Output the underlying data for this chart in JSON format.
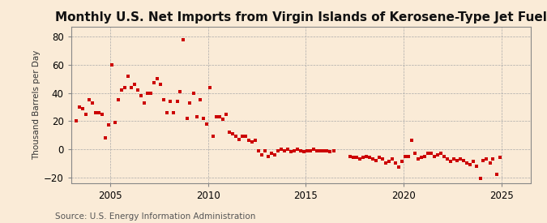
{
  "title": "Monthly U.S. Net Imports from Virgin Islands of Kerosene-Type Jet Fuel",
  "ylabel": "Thousand Barrels per Day",
  "source": "Source: U.S. Energy Information Administration",
  "background_color": "#faebd7",
  "dot_color": "#cc0000",
  "dot_size": 7,
  "xlim": [
    2003.0,
    2026.5
  ],
  "ylim": [
    -24,
    87
  ],
  "yticks": [
    -20,
    0,
    20,
    40,
    60,
    80
  ],
  "xticks": [
    2005,
    2010,
    2015,
    2020,
    2025
  ],
  "title_fontsize": 11,
  "tick_fontsize": 8.5,
  "ylabel_fontsize": 7.5,
  "source_fontsize": 7.5,
  "data_points": [
    [
      2003.25,
      20
    ],
    [
      2003.42,
      30
    ],
    [
      2003.58,
      29
    ],
    [
      2003.75,
      25
    ],
    [
      2003.92,
      35
    ],
    [
      2004.08,
      33
    ],
    [
      2004.25,
      26
    ],
    [
      2004.42,
      26
    ],
    [
      2004.58,
      25
    ],
    [
      2004.75,
      8
    ],
    [
      2004.92,
      17
    ],
    [
      2005.08,
      60
    ],
    [
      2005.25,
      19
    ],
    [
      2005.42,
      35
    ],
    [
      2005.58,
      42
    ],
    [
      2005.75,
      44
    ],
    [
      2005.92,
      52
    ],
    [
      2006.08,
      44
    ],
    [
      2006.25,
      46
    ],
    [
      2006.42,
      42
    ],
    [
      2006.58,
      38
    ],
    [
      2006.75,
      33
    ],
    [
      2006.92,
      40
    ],
    [
      2007.08,
      40
    ],
    [
      2007.25,
      47
    ],
    [
      2007.42,
      50
    ],
    [
      2007.58,
      46
    ],
    [
      2007.75,
      35
    ],
    [
      2007.92,
      26
    ],
    [
      2008.08,
      34
    ],
    [
      2008.25,
      26
    ],
    [
      2008.42,
      34
    ],
    [
      2008.58,
      41
    ],
    [
      2008.75,
      78
    ],
    [
      2008.92,
      22
    ],
    [
      2009.08,
      33
    ],
    [
      2009.25,
      40
    ],
    [
      2009.42,
      23
    ],
    [
      2009.58,
      35
    ],
    [
      2009.75,
      22
    ],
    [
      2009.92,
      18
    ],
    [
      2010.08,
      44
    ],
    [
      2010.25,
      9
    ],
    [
      2010.42,
      23
    ],
    [
      2010.58,
      23
    ],
    [
      2010.75,
      21
    ],
    [
      2010.92,
      25
    ],
    [
      2011.08,
      12
    ],
    [
      2011.25,
      11
    ],
    [
      2011.42,
      9
    ],
    [
      2011.58,
      7
    ],
    [
      2011.75,
      9
    ],
    [
      2011.92,
      9
    ],
    [
      2012.08,
      6
    ],
    [
      2012.25,
      5
    ],
    [
      2012.42,
      6
    ],
    [
      2012.58,
      -1
    ],
    [
      2012.75,
      -4
    ],
    [
      2012.92,
      -1
    ],
    [
      2013.08,
      -5
    ],
    [
      2013.25,
      -3
    ],
    [
      2013.42,
      -4
    ],
    [
      2013.58,
      -1
    ],
    [
      2013.75,
      0
    ],
    [
      2013.92,
      -1
    ],
    [
      2014.08,
      0
    ],
    [
      2014.25,
      -2
    ],
    [
      2014.42,
      -1
    ],
    [
      2014.58,
      0
    ],
    [
      2014.75,
      -1
    ],
    [
      2014.92,
      -2
    ],
    [
      2015.08,
      -1
    ],
    [
      2015.25,
      -1
    ],
    [
      2015.42,
      0
    ],
    [
      2015.58,
      -1
    ],
    [
      2015.75,
      -1
    ],
    [
      2015.92,
      -1
    ],
    [
      2016.08,
      -1
    ],
    [
      2016.25,
      -2
    ],
    [
      2016.42,
      -1
    ],
    [
      2017.25,
      -5
    ],
    [
      2017.42,
      -6
    ],
    [
      2017.58,
      -6
    ],
    [
      2017.75,
      -7
    ],
    [
      2017.92,
      -6
    ],
    [
      2018.08,
      -5
    ],
    [
      2018.25,
      -6
    ],
    [
      2018.42,
      -7
    ],
    [
      2018.58,
      -8
    ],
    [
      2018.75,
      -6
    ],
    [
      2018.92,
      -7
    ],
    [
      2019.08,
      -10
    ],
    [
      2019.25,
      -9
    ],
    [
      2019.42,
      -7
    ],
    [
      2019.58,
      -10
    ],
    [
      2019.75,
      -13
    ],
    [
      2019.92,
      -9
    ],
    [
      2020.08,
      -5
    ],
    [
      2020.25,
      -5
    ],
    [
      2020.42,
      6
    ],
    [
      2020.58,
      -3
    ],
    [
      2020.75,
      -7
    ],
    [
      2020.92,
      -6
    ],
    [
      2021.08,
      -5
    ],
    [
      2021.25,
      -3
    ],
    [
      2021.42,
      -3
    ],
    [
      2021.58,
      -5
    ],
    [
      2021.75,
      -4
    ],
    [
      2021.92,
      -3
    ],
    [
      2022.08,
      -5
    ],
    [
      2022.25,
      -7
    ],
    [
      2022.42,
      -9
    ],
    [
      2022.58,
      -7
    ],
    [
      2022.75,
      -8
    ],
    [
      2022.92,
      -7
    ],
    [
      2023.08,
      -8
    ],
    [
      2023.25,
      -10
    ],
    [
      2023.42,
      -11
    ],
    [
      2023.58,
      -9
    ],
    [
      2023.75,
      -12
    ],
    [
      2023.92,
      -21
    ],
    [
      2024.08,
      -8
    ],
    [
      2024.25,
      -7
    ],
    [
      2024.42,
      -10
    ],
    [
      2024.58,
      -7
    ],
    [
      2024.75,
      -18
    ],
    [
      2024.92,
      -6
    ]
  ]
}
